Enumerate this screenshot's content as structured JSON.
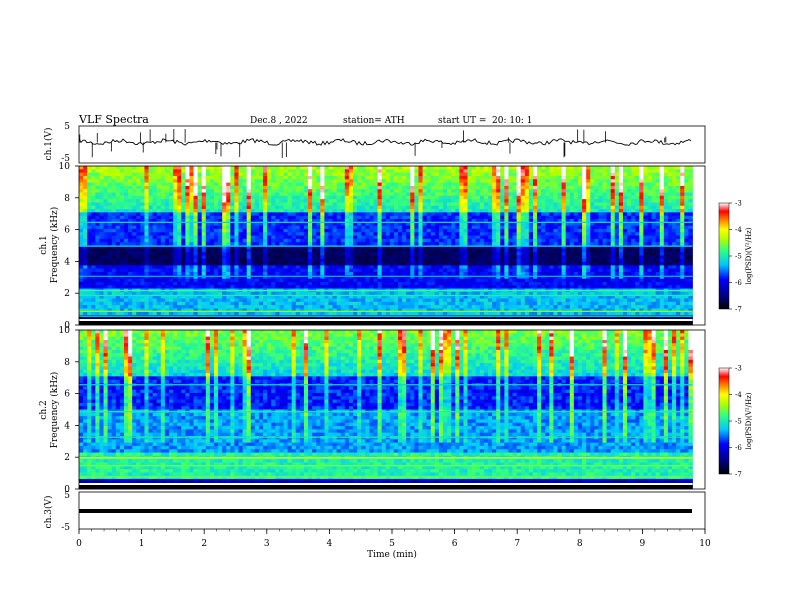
{
  "chart_data": [
    {
      "type": "line",
      "title": "VLF  Spectra",
      "header": {
        "date": "Dec.8  , 2022",
        "station": "station= ATH",
        "start_label": "start  UT  =",
        "start_time": "20: 10: 1"
      },
      "ylabel": "ch.1(V)",
      "ylim": [
        -5,
        5
      ],
      "y_ticks": [
        "5",
        "-5"
      ],
      "xlim": [
        0,
        10
      ],
      "series": [
        {
          "style": "noisy trace near 0 V with spikes",
          "values_approx": 0.2
        }
      ]
    },
    {
      "type": "heatmap",
      "ylabel_channel": "ch.1",
      "ylabel": "Frequency  (kHz)",
      "ylim": [
        0,
        10
      ],
      "y_ticks": [
        "0",
        "2",
        "4",
        "6",
        "8",
        "10"
      ],
      "xlim": [
        0,
        9.8
      ],
      "colorbar": {
        "label": "log(PSD)(V²/Hz)",
        "range": [
          -7,
          -3
        ],
        "ticks": [
          "-3",
          "-4",
          "-5",
          "-6",
          "-7"
        ]
      }
    },
    {
      "type": "heatmap",
      "ylabel_channel": "ch.2",
      "ylabel": "Frequency  (kHz)",
      "ylim": [
        0,
        10
      ],
      "y_ticks": [
        "0",
        "2",
        "4",
        "6",
        "8",
        "10"
      ],
      "xlim": [
        0,
        9.8
      ],
      "colorbar": {
        "label": "log(PSD)(V²/Hz)",
        "range": [
          -7,
          -3
        ],
        "ticks": [
          "-3",
          "-4",
          "-5",
          "-6",
          "-7"
        ]
      }
    },
    {
      "type": "line",
      "ylabel": "ch.3(V)",
      "ylim": [
        -5,
        5
      ],
      "y_ticks": [
        "5",
        "-5"
      ],
      "xlabel": "Time  (min)",
      "xlim": [
        0,
        10
      ],
      "x_ticks": [
        "0",
        "1",
        "2",
        "3",
        "4",
        "5",
        "6",
        "7",
        "8",
        "9",
        "10"
      ],
      "series": [
        {
          "style": "flat thick line",
          "values_approx": 0.5
        }
      ]
    }
  ],
  "colors": {
    "trace": "#000000",
    "colormap": [
      "#000000",
      "#00007f",
      "#0000ff",
      "#00c8ff",
      "#30ff80",
      "#b0ff00",
      "#ffff00",
      "#ff7f00",
      "#ff0000",
      "#ffffff"
    ]
  }
}
